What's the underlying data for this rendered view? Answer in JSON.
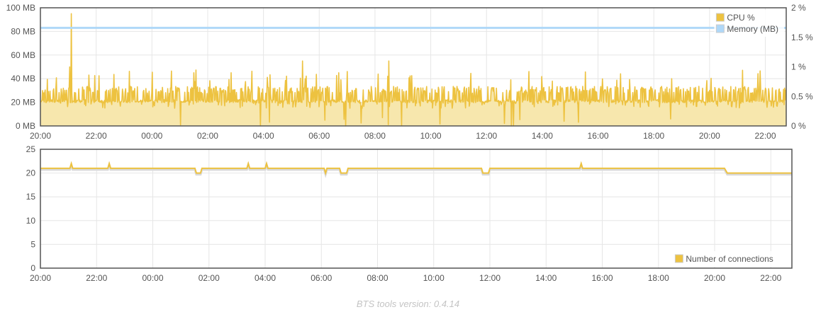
{
  "chart_data": [
    {
      "type": "area",
      "x_ticks": [
        "20:00",
        "22:00",
        "00:00",
        "02:00",
        "04:00",
        "06:00",
        "08:00",
        "10:00",
        "12:00",
        "14:00",
        "16:00",
        "18:00",
        "20:00",
        "22:00"
      ],
      "x_range_hours": [
        20,
        46.75
      ],
      "y_left": {
        "ticks": [
          "0 MB",
          "20 MB",
          "40 MB",
          "60 MB",
          "80 MB",
          "100 MB"
        ],
        "range": [
          0,
          100
        ],
        "unit": "MB"
      },
      "y_right": {
        "ticks": [
          "0 %",
          "0.5 %",
          "1 %",
          "1.5 %",
          "2 %"
        ],
        "range": [
          0,
          2
        ],
        "unit": "%"
      },
      "grid": true,
      "legend_position": "top-right",
      "series": [
        {
          "name": "CPU %",
          "axis": "right",
          "color": "#edc240",
          "fill": "#f7e7ad",
          "typical_range": [
            0.35,
            0.6
          ],
          "baseline": 0.42,
          "spikes": [
            {
              "t": 21.1,
              "v": 1.9
            },
            {
              "t": 21.05,
              "v": 1.0
            },
            {
              "t": 22.5,
              "v": 0.62
            },
            {
              "t": 1.5,
              "v": 0.9
            },
            {
              "t": 5.4,
              "v": 1.1
            },
            {
              "t": 6.7,
              "v": 0.9
            },
            {
              "t": 8.5,
              "v": 1.1
            },
            {
              "t": 6.95,
              "v": 0.0
            },
            {
              "t": 12.9,
              "v": 0.0
            },
            {
              "t": 22.1,
              "v": 0.85
            }
          ]
        },
        {
          "name": "Memory (MB)",
          "axis": "left",
          "color": "#afd8f8",
          "values_constant": 83
        }
      ]
    },
    {
      "type": "line",
      "x_ticks": [
        "20:00",
        "22:00",
        "00:00",
        "02:00",
        "04:00",
        "06:00",
        "08:00",
        "10:00",
        "12:00",
        "14:00",
        "16:00",
        "18:00",
        "20:00",
        "22:00"
      ],
      "x_range_hours": [
        20,
        46.75
      ],
      "y_left": {
        "ticks": [
          "0",
          "5",
          "10",
          "15",
          "20",
          "25"
        ],
        "range": [
          0,
          25
        ]
      },
      "grid": true,
      "legend_position": "bottom-right",
      "series": [
        {
          "name": "Number of connections",
          "color": "#edc240",
          "points": [
            [
              20.0,
              21
            ],
            [
              21.05,
              21
            ],
            [
              21.1,
              22
            ],
            [
              21.15,
              21
            ],
            [
              22.4,
              21
            ],
            [
              22.45,
              22
            ],
            [
              22.5,
              21
            ],
            [
              25.5,
              21
            ],
            [
              25.55,
              20
            ],
            [
              25.7,
              20
            ],
            [
              25.75,
              21
            ],
            [
              27.35,
              21
            ],
            [
              27.4,
              22
            ],
            [
              27.45,
              21
            ],
            [
              28.0,
              21
            ],
            [
              28.05,
              22
            ],
            [
              28.1,
              21
            ],
            [
              30.1,
              21
            ],
            [
              30.15,
              20
            ],
            [
              30.2,
              21
            ],
            [
              30.65,
              21
            ],
            [
              30.7,
              20
            ],
            [
              30.9,
              20
            ],
            [
              30.95,
              21
            ],
            [
              35.7,
              21
            ],
            [
              35.75,
              20
            ],
            [
              35.95,
              20
            ],
            [
              36.0,
              21
            ],
            [
              39.2,
              21
            ],
            [
              39.25,
              22
            ],
            [
              39.3,
              21
            ],
            [
              44.35,
              21
            ],
            [
              44.45,
              20
            ],
            [
              46.75,
              20
            ]
          ]
        }
      ]
    }
  ],
  "footer": {
    "version_text": "BTS tools version: 0.4.14"
  }
}
